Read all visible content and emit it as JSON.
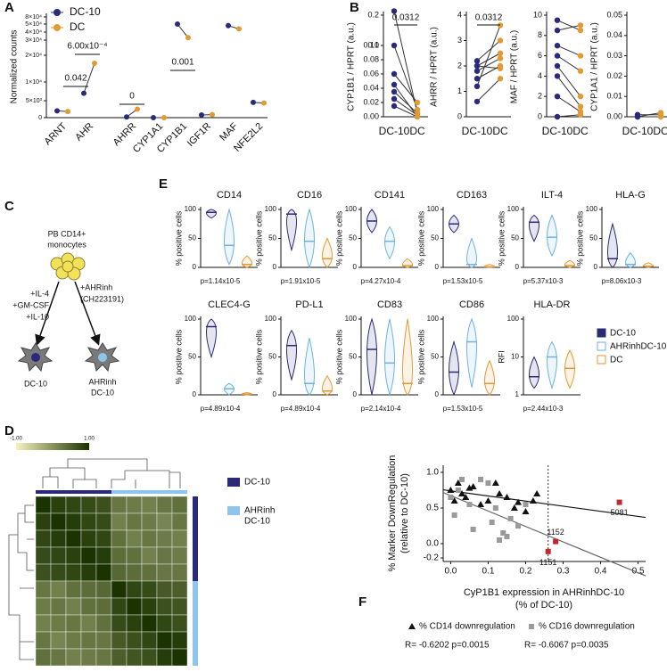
{
  "panel_labels": [
    "A",
    "B",
    "C",
    "D",
    "E",
    "F"
  ],
  "diagram": {
    "source": [
      "PB CD14+",
      "monocytes"
    ],
    "left_treatment": [
      "+IL-4",
      "+GM-CSF",
      "+IL-10"
    ],
    "right_treatment": [
      "+AHRinh",
      "(CH223191)"
    ],
    "left_product": [
      "DC-10"
    ],
    "right_product": [
      "AHRinh",
      "DC-10"
    ]
  },
  "chart_data": [
    {
      "type": "dotline",
      "ylabel": "Normalized counts",
      "categories": [
        "ARNT",
        "AHR",
        "AHRR",
        "CYP1A1",
        "CYP1B1",
        "IGF1R",
        "MAF",
        "NFE2L2"
      ],
      "series": [
        {
          "name": "DC-10",
          "color": "#2b2a7a",
          "values": [
            2000,
            7000,
            200,
            0,
            50000,
            800,
            48000,
            4500
          ]
        },
        {
          "name": "DC",
          "color": "#e39a34",
          "values": [
            1800,
            17000,
            2500,
            0,
            33000,
            900,
            44000,
            4300
          ]
        }
      ],
      "yticks": [
        0,
        {
          "value": 5000,
          "label": "5×10³"
        },
        {
          "value": 10000,
          "label": "1×10⁴"
        },
        {
          "value": 20000,
          "label": "2×10⁴"
        },
        {
          "value": 30000,
          "label": "3×10⁴"
        },
        {
          "value": 40000,
          "label": "4×10⁴"
        },
        {
          "value": 50000,
          "label": "5×10⁴"
        },
        {
          "value": 80000,
          "label": "8×10⁴"
        }
      ],
      "annotations": [
        "0.042",
        "6.00x10⁻⁴",
        "0",
        "0.001"
      ]
    },
    {
      "type": "paired",
      "ylabel": "CYP1B1 / HPRT (a.u.)",
      "categories": [
        "DC-10",
        "DC"
      ],
      "colors": [
        "#2b2a7a",
        "#e39a34"
      ],
      "values": [
        [
          0.22,
          0.005
        ],
        [
          0.1,
          0.01
        ],
        [
          0.06,
          0.02
        ],
        [
          0.045,
          0
        ],
        [
          0.035,
          0.005
        ],
        [
          0.025,
          0.002
        ],
        [
          0.015,
          0
        ]
      ],
      "yticks": [
        {
          "value": 0,
          "label": "0.00"
        },
        0.02,
        0.04,
        0.06,
        0.08,
        {
          "value": 0.1,
          "label": "0.10"
        },
        0.1,
        0.2
      ],
      "annotation": "0.0312"
    },
    {
      "type": "paired",
      "ylabel": "AHRR / HPRT (a.u.)",
      "categories": [
        "DC-10",
        "DC"
      ],
      "colors": [
        "#2b2a7a",
        "#e39a34"
      ],
      "values": [
        [
          1.2,
          3.6
        ],
        [
          1.5,
          2.0
        ],
        [
          1.8,
          2.3
        ],
        [
          2.0,
          1.9
        ],
        [
          2.2,
          3.0
        ],
        [
          2.0,
          2.5
        ],
        [
          0.6,
          1.5
        ]
      ],
      "ylim": [
        0,
        4
      ],
      "yticks": [
        0,
        1,
        2,
        3,
        4
      ],
      "annotation": "0.0312"
    },
    {
      "type": "paired",
      "ylabel": "MAF / HPRT (a.u.)",
      "categories": [
        "DC-10",
        "DC"
      ],
      "colors": [
        "#2b2a7a",
        "#e39a34"
      ],
      "values": [
        [
          9.5,
          8.5
        ],
        [
          8.5,
          9
        ],
        [
          7,
          6
        ],
        [
          6,
          4.5
        ],
        [
          5,
          2
        ],
        [
          4,
          1
        ],
        [
          2,
          0.5
        ],
        [
          0,
          0.2
        ]
      ],
      "ylim": [
        0,
        10
      ],
      "yticks": [
        0,
        2,
        4,
        6,
        8,
        10
      ]
    },
    {
      "type": "paired",
      "ylabel": "CYP1A1 / HPRT (a.u.)",
      "categories": [
        "DC-10",
        "DC"
      ],
      "colors": [
        "#2b2a7a",
        "#e39a34"
      ],
      "values": [
        [
          0.001,
          0.001
        ],
        [
          0,
          0.002
        ],
        [
          0,
          0
        ]
      ],
      "ylim": [
        0,
        0.05
      ],
      "yticks": [
        {
          "value": 0,
          "label": "0.00"
        },
        0.01,
        0.02,
        0.03,
        0.04,
        0.05
      ]
    },
    {
      "type": "violin",
      "series": [
        {
          "name": "DC-10",
          "color": "#2b2a7a"
        },
        {
          "name": "AHRinhDC-10",
          "color": "#6fb3e0"
        },
        {
          "name": "DC",
          "color": "#e39a34"
        }
      ],
      "plots": [
        {
          "title": "CD14",
          "ylabel": "% positive cells",
          "ylim": [
            0,
            100
          ],
          "yticks": [
            0,
            50,
            100
          ],
          "values": [
            95,
            38,
            5
          ],
          "ranges": [
            [
              85,
              100
            ],
            [
              5,
              100
            ],
            [
              0,
              20
            ]
          ],
          "pvalue": "p=1.14x10-5"
        },
        {
          "title": "CD16",
          "ylabel": "% positive cells",
          "ylim": [
            0,
            100
          ],
          "yticks": [
            0,
            50,
            100
          ],
          "values": [
            92,
            45,
            15
          ],
          "ranges": [
            [
              30,
              100
            ],
            [
              0,
              100
            ],
            [
              0,
              50
            ]
          ],
          "pvalue": "p=1.91x10-5"
        },
        {
          "title": "CD141",
          "ylabel": "% positive cells",
          "ylim": [
            0,
            100
          ],
          "yticks": [
            0,
            50,
            100
          ],
          "values": [
            80,
            45,
            3
          ],
          "ranges": [
            [
              60,
              100
            ],
            [
              15,
              70
            ],
            [
              0,
              15
            ]
          ],
          "pvalue": "p=4.27x10-4"
        },
        {
          "title": "CD163",
          "ylabel": "% positive cells",
          "ylim": [
            0,
            100
          ],
          "yticks": [
            0,
            50,
            100
          ],
          "values": [
            75,
            5,
            1
          ],
          "ranges": [
            [
              60,
              90
            ],
            [
              0,
              50
            ],
            [
              0,
              5
            ]
          ],
          "pvalue": "p=1.53x10-5"
        },
        {
          "title": "ILT-4",
          "ylabel": "% positive cells",
          "ylim": [
            0,
            100
          ],
          "yticks": [
            0,
            50,
            100
          ],
          "values": [
            78,
            52,
            3
          ],
          "ranges": [
            [
              45,
              90
            ],
            [
              20,
              90
            ],
            [
              0,
              12
            ]
          ],
          "pvalue": "p=5.37x10-3"
        },
        {
          "title": "HLA-G",
          "ylabel": "% positive cells",
          "ylim": [
            0,
            100
          ],
          "yticks": [
            0,
            50,
            100
          ],
          "values": [
            15,
            5,
            2
          ],
          "ranges": [
            [
              0,
              75
            ],
            [
              0,
              25
            ],
            [
              0,
              8
            ]
          ],
          "pvalue": "p=8.06x10-3"
        },
        {
          "title": "CLEC4-G",
          "ylabel": "% positive cells",
          "ylim": [
            0,
            100
          ],
          "yticks": [
            0,
            50,
            100
          ],
          "values": [
            90,
            8,
            1
          ],
          "ranges": [
            [
              50,
              100
            ],
            [
              0,
              15
            ],
            [
              0,
              3
            ]
          ],
          "pvalue": "p=4.89x10-4"
        },
        {
          "title": "PD-L1",
          "ylabel": "% positive cells",
          "ylim": [
            0,
            100
          ],
          "yticks": [
            0,
            50,
            100
          ],
          "values": [
            65,
            15,
            5
          ],
          "ranges": [
            [
              20,
              85
            ],
            [
              0,
              75
            ],
            [
              0,
              25
            ]
          ],
          "pvalue": "p=4.89x10-4"
        },
        {
          "title": "CD83",
          "ylabel": "% positive cells",
          "ylim": [
            0,
            100
          ],
          "yticks": [
            0,
            50,
            100
          ],
          "values": [
            60,
            42,
            15
          ],
          "ranges": [
            [
              0,
              100
            ],
            [
              0,
              100
            ],
            [
              0,
              100
            ]
          ],
          "pvalue": "p=2.14x10-4"
        },
        {
          "title": "CD86",
          "ylabel": "% positive cells",
          "ylim": [
            0,
            100
          ],
          "yticks": [
            0,
            50,
            100
          ],
          "values": [
            30,
            70,
            15
          ],
          "ranges": [
            [
              0,
              70
            ],
            [
              10,
              100
            ],
            [
              0,
              45
            ]
          ],
          "pvalue": "p=1.53x10-5"
        },
        {
          "title": "HLA-DR",
          "ylabel": "RFI",
          "log": true,
          "ylim": [
            1,
            100
          ],
          "yticks": [
            1,
            10,
            100
          ],
          "values": [
            3,
            10,
            5
          ],
          "ranges": [
            [
              1.5,
              10
            ],
            [
              1.5,
              25
            ],
            [
              1.5,
              15
            ]
          ],
          "pvalue": "p=2.44x10-3"
        }
      ]
    },
    {
      "type": "heatmap",
      "clim": [
        {
          "value": -1,
          "label": "-1.00"
        },
        {
          "value": 1,
          "label": "1.00"
        }
      ],
      "colormap": [
        "#f5f3c0",
        "#1a3300"
      ],
      "groups": [
        {
          "name": [
            "DC-10"
          ],
          "color": "#2b2a7a"
        },
        {
          "name": [
            "AHRinh",
            "DC-10"
          ],
          "color": "#8ec5ea"
        }
      ],
      "row_groups": [
        0,
        0,
        0,
        0,
        0,
        1,
        1,
        1,
        1,
        1
      ],
      "matrix": [
        [
          1,
          0.85,
          0.8,
          0.75,
          0.7,
          0.3,
          0.25,
          0.2,
          0.3,
          0.35
        ],
        [
          0.85,
          1,
          0.9,
          0.8,
          0.75,
          0.2,
          0.3,
          0.25,
          0.15,
          0.3
        ],
        [
          0.8,
          0.9,
          1,
          0.85,
          0.8,
          0.35,
          0.2,
          0.3,
          0.25,
          0.2
        ],
        [
          0.75,
          0.8,
          0.85,
          1,
          0.9,
          0.4,
          0.35,
          0.2,
          0.3,
          0.25
        ],
        [
          0.7,
          0.75,
          0.8,
          0.9,
          1,
          0.45,
          0.4,
          0.35,
          0.3,
          0.3
        ],
        [
          0.3,
          0.2,
          0.35,
          0.4,
          0.45,
          1,
          0.8,
          0.75,
          0.6,
          0.55
        ],
        [
          0.25,
          0.3,
          0.2,
          0.35,
          0.4,
          0.8,
          1,
          0.85,
          0.7,
          0.65
        ],
        [
          0.2,
          0.25,
          0.3,
          0.2,
          0.35,
          0.75,
          0.85,
          1,
          0.8,
          0.7
        ],
        [
          0.3,
          0.15,
          0.25,
          0.3,
          0.3,
          0.6,
          0.7,
          0.8,
          1,
          0.9
        ],
        [
          0.35,
          0.3,
          0.2,
          0.25,
          0.3,
          0.55,
          0.65,
          0.7,
          0.9,
          1
        ]
      ]
    },
    {
      "type": "scatter",
      "ylabel": [
        "% Marker DownRegulation",
        "(relative to DC-10)"
      ],
      "xlabel": [
        "CyP1B1 expression in AHRinhDC-10",
        "(% of DC-10)"
      ],
      "xlim": [
        -0.02,
        0.52
      ],
      "ylim": [
        -0.25,
        1.1
      ],
      "xticks": [
        {
          "value": 0,
          "label": "0.0"
        },
        0.1,
        0.2,
        0.3,
        0.4,
        0.5
      ],
      "yticks": [
        -0.2,
        {
          "value": 0,
          "label": "0.0"
        },
        0.5,
        {
          "value": 1,
          "label": "1.0"
        }
      ],
      "threshold_x": 0.26,
      "series": [
        {
          "name": "% CD14 downregulation",
          "color": "#111111",
          "marker": "triangle",
          "stats": "R= -0.6202 p=0.0015",
          "x": [
            0,
            0.01,
            0.02,
            0.03,
            0.04,
            0.05,
            0.06,
            0.08,
            0.1,
            0.12,
            0.13,
            0.15,
            0.17,
            0.2,
            0.22,
            0.23,
            0.18
          ],
          "y": [
            0.75,
            0.6,
            0.85,
            0.7,
            0.65,
            0.78,
            0.8,
            0.55,
            0.6,
            0.85,
            0.7,
            0.65,
            0.5,
            0.45,
            0.6,
            0.7,
            0.58
          ]
        },
        {
          "name": "% CD16 downregulation",
          "color": "#9a9a9a",
          "marker": "square",
          "stats": "R= -0.6067 p=0.0035",
          "x": [
            0,
            0.01,
            0.02,
            0.03,
            0.05,
            0.06,
            0.08,
            0.1,
            0.11,
            0.12,
            0.14,
            0.15,
            0.16,
            0.18,
            0.2,
            0.13
          ],
          "y": [
            0.65,
            0.4,
            0.75,
            0.9,
            0.55,
            0.2,
            0.9,
            0.85,
            0.3,
            0.5,
            0.15,
            0.1,
            0.35,
            0.25,
            0.55,
            0.05
          ]
        }
      ],
      "highlights": {
        "color": "#c0282d",
        "x": [
          0.45,
          0.28,
          0.26
        ],
        "y": [
          0.58,
          0.03,
          -0.11
        ],
        "labels": [
          "5081",
          "1152",
          "1151"
        ]
      }
    }
  ]
}
